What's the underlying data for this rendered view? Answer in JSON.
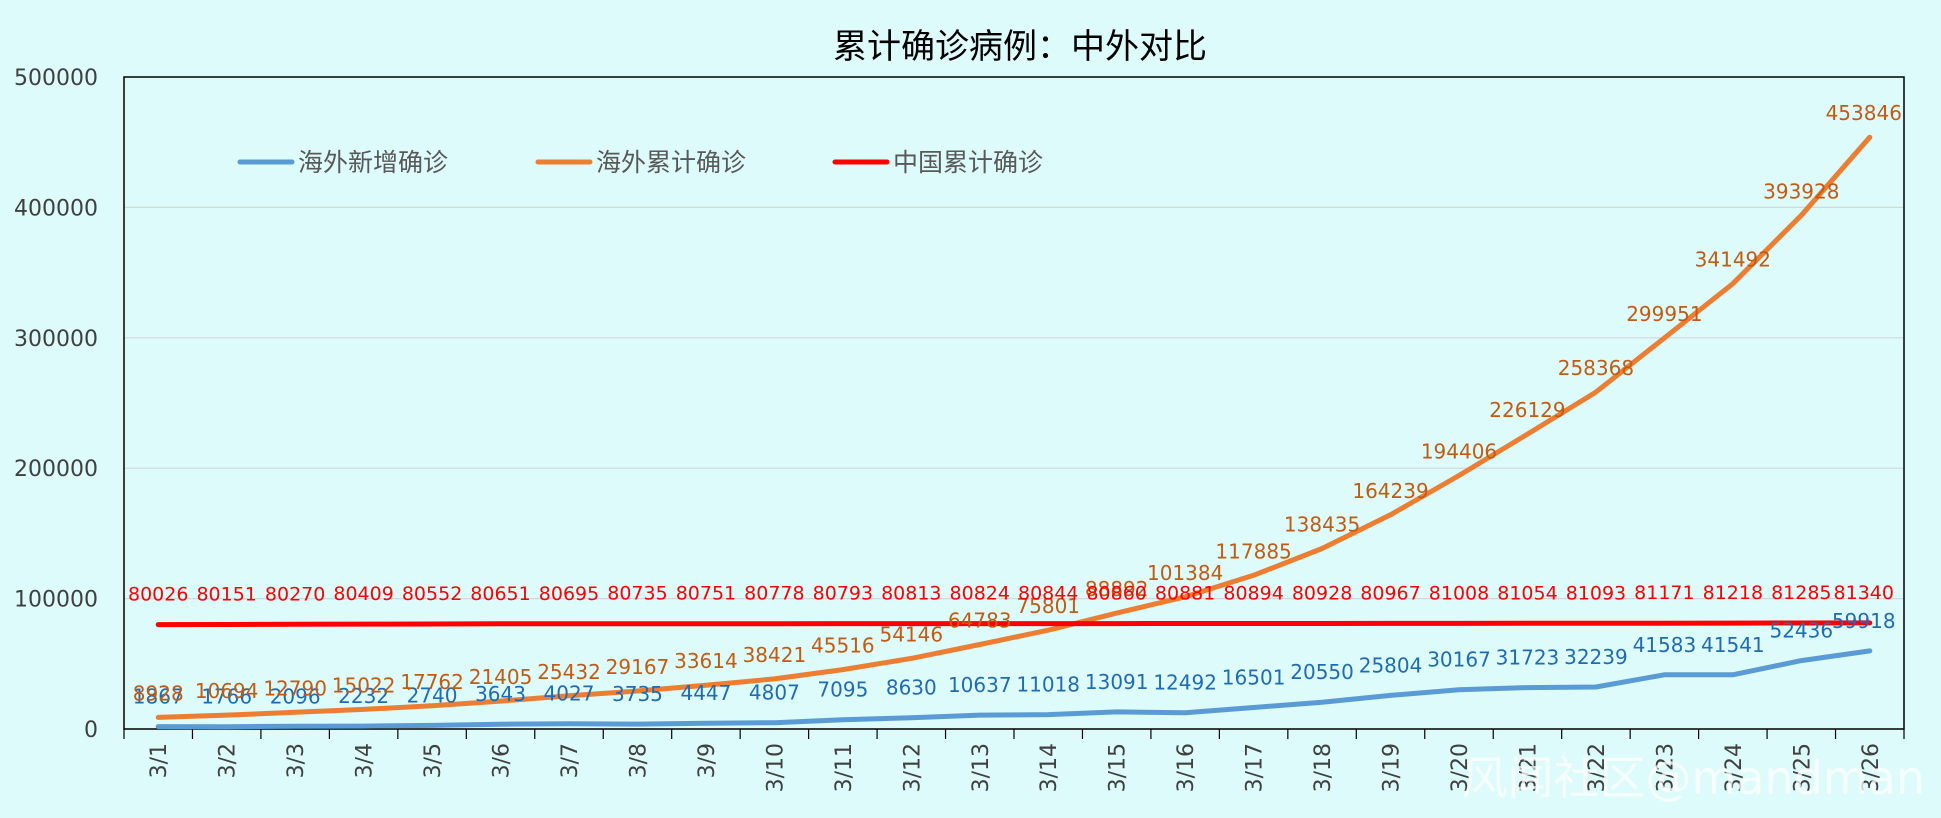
{
  "chart_data": {
    "type": "line",
    "title": "累计确诊病例：中外对比",
    "xlabel": "",
    "ylabel": "",
    "ylim": [
      0,
      500000
    ],
    "yticks": [
      0,
      100000,
      200000,
      300000,
      400000,
      500000
    ],
    "grid": true,
    "legend_position": "top-left",
    "categories": [
      "3/1",
      "3/2",
      "3/3",
      "3/4",
      "3/5",
      "3/6",
      "3/7",
      "3/8",
      "3/9",
      "3/10",
      "3/11",
      "3/12",
      "3/13",
      "3/14",
      "3/15",
      "3/16",
      "3/17",
      "3/18",
      "3/19",
      "3/20",
      "3/21",
      "3/22",
      "3/23",
      "3/24",
      "3/25",
      "3/26"
    ],
    "series": [
      {
        "name": "海外新增确诊",
        "color": "#5b9bd5",
        "values": [
          1867,
          1766,
          2096,
          2232,
          2740,
          3643,
          4027,
          3735,
          4447,
          4807,
          7095,
          8630,
          10637,
          11018,
          13091,
          12492,
          16501,
          20550,
          25804,
          30167,
          31723,
          32239,
          41583,
          41541,
          52436,
          59918
        ]
      },
      {
        "name": "海外累计确诊",
        "color": "#ed7d31",
        "values": [
          8928,
          10694,
          12790,
          15022,
          17762,
          21405,
          25432,
          29167,
          33614,
          38421,
          45516,
          54146,
          64783,
          75801,
          88892,
          101384,
          117885,
          138435,
          164239,
          194406,
          226129,
          258368,
          299951,
          341492,
          393928,
          453846
        ]
      },
      {
        "name": "中国累计确诊",
        "color": "#ff0000",
        "values": [
          80026,
          80151,
          80270,
          80409,
          80552,
          80651,
          80695,
          80735,
          80751,
          80778,
          80793,
          80813,
          80824,
          80844,
          80860,
          80881,
          80894,
          80928,
          80967,
          81008,
          81054,
          81093,
          81171,
          81218,
          81285,
          81340
        ]
      }
    ]
  },
  "watermark": "风闻社区@mandman"
}
